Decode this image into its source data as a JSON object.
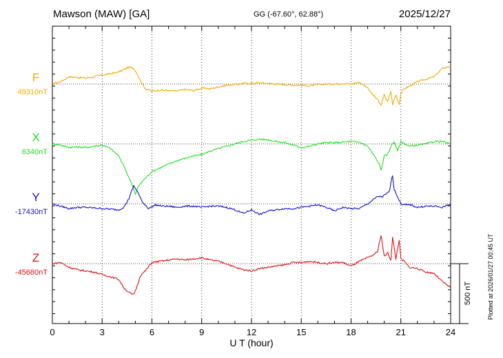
{
  "header": {
    "station": "Mawson (MAW)  [GA]",
    "coords": "GG (-67.60°,  62.88°)",
    "date": "2025/12/27"
  },
  "footer_note": "Plotted at 2026/01/27 00:45 UT",
  "chart_data": {
    "type": "line",
    "title": "Mawson (MAW)  [GA]",
    "xlabel": "U T (hour)",
    "xlim": [
      0,
      24
    ],
    "xticks": [
      "0",
      "3",
      "6",
      "9",
      "12",
      "15",
      "18",
      "21",
      "24"
    ],
    "scale_bar": {
      "label": "500 nT",
      "value_nT": 500
    },
    "series": [
      {
        "name": "F",
        "baseline_label": "49310nT",
        "baseline_nT": 49310,
        "color": "#f5a800",
        "x": [
          0,
          0.5,
          1,
          1.5,
          2,
          2.5,
          3,
          3.5,
          4,
          4.3,
          4.6,
          4.9,
          5.1,
          5.3,
          5.6,
          6,
          6.5,
          7,
          7.5,
          8,
          8.5,
          9,
          9.5,
          10,
          10.5,
          11,
          11.5,
          12,
          12.5,
          13,
          13.5,
          14,
          14.5,
          15,
          15.5,
          16,
          16.5,
          17,
          17.5,
          18,
          18.5,
          19,
          19.3,
          19.6,
          19.8,
          20,
          20.2,
          20.4,
          20.5,
          20.7,
          20.9,
          21,
          21.2,
          21.5,
          22,
          22.5,
          23,
          23.5,
          24
        ],
        "values": [
          0,
          20,
          60,
          55,
          50,
          60,
          75,
          85,
          100,
          120,
          140,
          130,
          90,
          30,
          -40,
          -60,
          -50,
          -55,
          -60,
          -45,
          -55,
          -35,
          -40,
          -25,
          -10,
          -5,
          5,
          5,
          10,
          5,
          0,
          -5,
          -10,
          -10,
          -15,
          -5,
          0,
          0,
          5,
          0,
          15,
          -30,
          -90,
          -130,
          -180,
          -90,
          -150,
          -60,
          -170,
          -90,
          -170,
          -80,
          -40,
          -20,
          20,
          40,
          60,
          130,
          150
        ]
      },
      {
        "name": "X",
        "baseline_label": "6340nT",
        "baseline_nT": 6340,
        "color": "#22e022",
        "x": [
          0,
          0.5,
          1,
          1.5,
          2,
          2.5,
          3,
          3.5,
          4,
          4.3,
          4.6,
          4.8,
          5,
          5.2,
          5.5,
          6,
          6.5,
          7,
          7.5,
          8,
          8.5,
          9,
          9.5,
          10,
          10.5,
          11,
          11.5,
          12,
          12.5,
          13,
          13.5,
          14,
          14.5,
          15,
          15.5,
          16,
          16.5,
          17,
          17.5,
          18,
          18.5,
          19,
          19.3,
          19.5,
          19.7,
          19.8,
          20,
          20.2,
          20.4,
          20.6,
          20.8,
          21,
          21.5,
          22,
          22.5,
          23,
          23.5,
          24
        ],
        "values": [
          0,
          -10,
          -30,
          -25,
          -30,
          -20,
          -10,
          -40,
          -100,
          -180,
          -280,
          -340,
          -420,
          -350,
          -300,
          -230,
          -200,
          -170,
          -140,
          -120,
          -100,
          -90,
          -60,
          -40,
          -20,
          0,
          20,
          30,
          40,
          35,
          20,
          10,
          -10,
          -30,
          -20,
          0,
          10,
          10,
          15,
          20,
          15,
          -20,
          -80,
          -120,
          -170,
          -220,
          -100,
          -90,
          -20,
          20,
          -60,
          20,
          -20,
          -10,
          0,
          20,
          20,
          0
        ]
      },
      {
        "name": "Y",
        "baseline_label": "-17430nT",
        "baseline_nT": -17430,
        "color": "#1010d0",
        "x": [
          0,
          0.5,
          1,
          1.5,
          2,
          2.5,
          3,
          3.5,
          4,
          4.3,
          4.6,
          4.9,
          5.1,
          5.4,
          5.8,
          6.2,
          6.7,
          7,
          7.5,
          8,
          8.5,
          9,
          9.5,
          10,
          10.5,
          11,
          11.5,
          12,
          12.5,
          13,
          13.5,
          14,
          14.5,
          15,
          15.5,
          16,
          16.5,
          17,
          17.5,
          18,
          18.5,
          19,
          19.3,
          19.6,
          19.9,
          20.1,
          20.3,
          20.5,
          20.6,
          20.8,
          21,
          21.3,
          21.6,
          22,
          22.5,
          23,
          23.5,
          24
        ],
        "values": [
          0,
          -20,
          -40,
          -30,
          -30,
          -35,
          -40,
          -45,
          -50,
          -30,
          40,
          150,
          110,
          20,
          -40,
          -10,
          -20,
          -20,
          -30,
          -20,
          -20,
          -30,
          -20,
          -20,
          -30,
          -50,
          -80,
          -50,
          -90,
          -60,
          -50,
          -40,
          -40,
          -30,
          -20,
          -10,
          -30,
          -60,
          -30,
          -40,
          -40,
          0,
          30,
          60,
          60,
          80,
          100,
          240,
          120,
          60,
          0,
          -10,
          -10,
          -30,
          -20,
          -20,
          -30,
          0
        ]
      },
      {
        "name": "Z",
        "baseline_label": "-45680nT",
        "baseline_nT": -45680,
        "color": "#e01010",
        "x": [
          0,
          0.5,
          1,
          1.5,
          2,
          2.5,
          3,
          3.5,
          4,
          4.3,
          4.6,
          4.9,
          5.1,
          5.3,
          5.6,
          6,
          6.5,
          7,
          7.5,
          8,
          8.5,
          9,
          9.5,
          10,
          10.5,
          11,
          11.5,
          12,
          12.5,
          13,
          13.5,
          14,
          14.5,
          15,
          15.5,
          16,
          16.5,
          17,
          17.5,
          18,
          18.5,
          19,
          19.3,
          19.6,
          19.8,
          20,
          20.2,
          20.4,
          20.5,
          20.7,
          20.9,
          21,
          21.2,
          21.5,
          22,
          22.5,
          23,
          23.5,
          24
        ],
        "values": [
          0,
          10,
          -30,
          -50,
          -60,
          -70,
          -90,
          -110,
          -130,
          -200,
          -240,
          -260,
          -190,
          -100,
          -60,
          10,
          20,
          30,
          40,
          30,
          40,
          50,
          30,
          20,
          0,
          -30,
          -50,
          -60,
          -40,
          -30,
          -20,
          -10,
          10,
          10,
          20,
          10,
          0,
          10,
          10,
          -20,
          20,
          50,
          70,
          100,
          240,
          60,
          90,
          30,
          220,
          40,
          200,
          40,
          20,
          -30,
          -40,
          -70,
          -80,
          -150,
          -200
        ]
      }
    ]
  }
}
